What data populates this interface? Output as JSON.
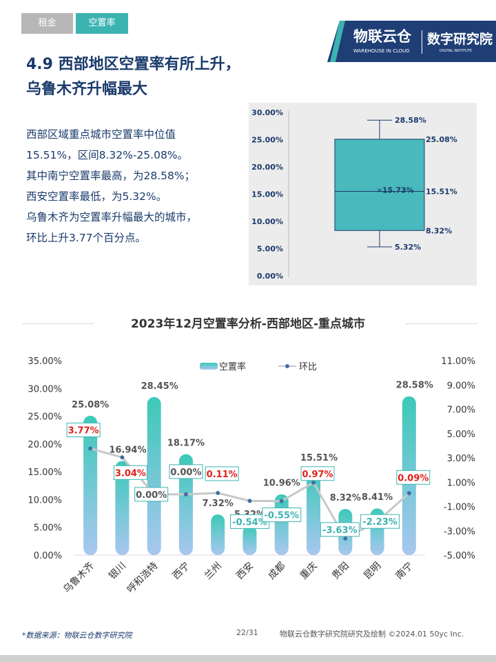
{
  "tabs": [
    {
      "label": "租金"
    },
    {
      "label": "空置率"
    }
  ],
  "logo": {
    "brand": "物联云仓",
    "brand_sub": "WAREHOUSE IN CLOUD",
    "institute": "数字研究院",
    "institute_sub": "DIGITAL INSTITUTE"
  },
  "section": {
    "title_line1": "4.9 西部地区空置率有所上升，",
    "title_line2": "乌鲁木齐升幅最大"
  },
  "summary": [
    "西部区域重点城市空置率中位值",
    "15.51%，区间8.32%-25.08%。",
    "其中南宁空置率最高，为28.58%；",
    "西安空置率最低，为5.32%。",
    "乌鲁木齐为空置率升幅最大的城市，",
    "环比上升3.77个百分点。"
  ],
  "chart_data": [
    {
      "type": "boxplot",
      "y_ticks": [
        "30.00%",
        "25.00%",
        "20.00%",
        "15.00%",
        "10.00%",
        "5.00%",
        "0.00%"
      ],
      "ylim": [
        0,
        30
      ],
      "max": 28.58,
      "q3": 25.08,
      "median": 15.51,
      "mean": 15.73,
      "q1": 8.32,
      "min": 5.32,
      "labels": {
        "max": "28.58%",
        "q3": "25.08%",
        "median": "15.51%",
        "mean": "15.73%",
        "q1": "8.32%",
        "min": "5.32%"
      },
      "box_color": "#49b9bd",
      "line_color": "#1a3a6b"
    },
    {
      "type": "bar+line",
      "title": "2023年12月空置率分析-西部地区-重点城市",
      "legend": [
        {
          "name": "空置率",
          "kind": "bar"
        },
        {
          "name": "环比",
          "kind": "line"
        }
      ],
      "legend_position": "top-center",
      "categories": [
        "乌鲁木齐",
        "银川",
        "呼和浩特",
        "西宁",
        "兰州",
        "西安",
        "成都",
        "重庆",
        "贵阳",
        "昆明",
        "南宁"
      ],
      "series": [
        {
          "name": "空置率",
          "axis": "left",
          "values": [
            25.08,
            16.94,
            28.45,
            18.17,
            7.32,
            5.32,
            10.96,
            15.51,
            8.32,
            8.41,
            28.58
          ],
          "labels": [
            "25.08%",
            "16.94%",
            "28.45%",
            "18.17%",
            "7.32%",
            "5.32%",
            "10.96%",
            "15.51%",
            "8.32%",
            "8.41%",
            "28.58%"
          ]
        },
        {
          "name": "环比",
          "axis": "right",
          "values": [
            3.77,
            3.04,
            0.0,
            0.0,
            0.11,
            -0.54,
            -0.55,
            0.97,
            -3.63,
            -2.23,
            0.09
          ],
          "labels": [
            "3.77%",
            "3.04%",
            "0.00%",
            "0.00%",
            "0.11%",
            "-0.54%",
            "-0.55%",
            "0.97%",
            "-3.63%",
            "-2.23%",
            "0.09%"
          ]
        }
      ],
      "left_axis": {
        "ylim": [
          0,
          35
        ],
        "ticks": [
          "35.00%",
          "30.00%",
          "25.00%",
          "20.00%",
          "15.00%",
          "10.00%",
          "5.00%",
          "0.00%"
        ]
      },
      "right_axis": {
        "ylim": [
          -5,
          11
        ],
        "ticks": [
          "11.00%",
          "9.00%",
          "7.00%",
          "5.00%",
          "3.00%",
          "1.00%",
          "-1.00%",
          "-3.00%",
          "-5.00%"
        ]
      },
      "colors": {
        "bar_top": "#3cc9b8",
        "bar_bottom": "#a9c7f0",
        "line": "#c8c8c8",
        "point": "#3f6fa8",
        "positive": "#e0201c",
        "negative": "#3bb3b1"
      }
    }
  ],
  "footer": {
    "source": "*数据来源：物联云仓数字研究院",
    "page": "22/31",
    "credit": "物联云仓数字研究院研究及绘制   ©2024.01 50yc Inc."
  }
}
